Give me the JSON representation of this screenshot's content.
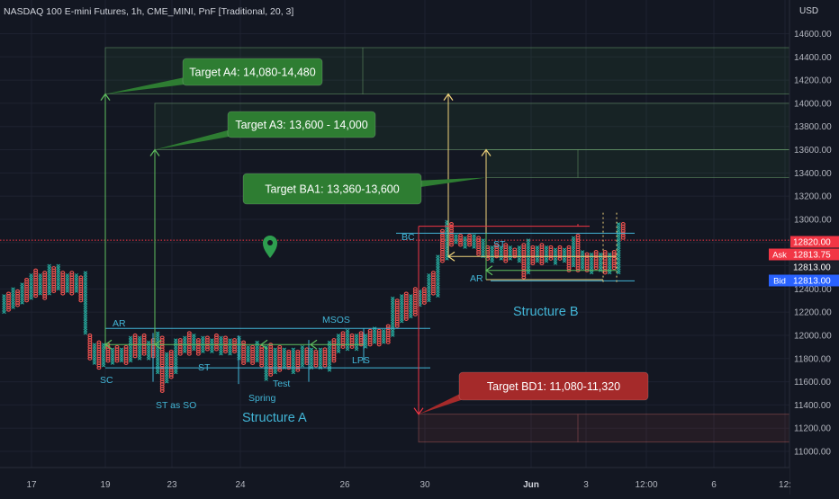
{
  "header": {
    "symbol_line": "NASDAQ 100 E-mini Futures, 1h, CME_MINI, PnF [Traditional, 20, 3]",
    "currency": "USD"
  },
  "chart_data": {
    "type": "point-and-figure",
    "ylim": [
      10950,
      14850
    ],
    "y_ticks": [
      11000,
      11200,
      11400,
      11600,
      11800,
      12000,
      12200,
      12400,
      12600,
      12800,
      13000,
      13200,
      13400,
      13600,
      13800,
      14000,
      14200,
      14400,
      14600
    ],
    "y_tick_labels": [
      "11000.00",
      "11200.00",
      "11400.00",
      "11600.00",
      "11800.00",
      "12000.00",
      "12200.00",
      "12400.00",
      "12600.00",
      "12800.00",
      "13000.00",
      "13200.00",
      "13400.00",
      "13600.00",
      "13800.00",
      "14000.00",
      "14200.00",
      "14400.00",
      "14600.00"
    ],
    "x_ticks": [
      "17",
      "19",
      "23",
      "24",
      "26",
      "30",
      "Jun",
      "3",
      "12:00",
      "6",
      "12:"
    ],
    "box_size": 20,
    "columns": [
      [
        12200,
        12340,
        "X"
      ],
      [
        12220,
        12360,
        "O"
      ],
      [
        12240,
        12400,
        "X"
      ],
      [
        12260,
        12380,
        "O"
      ],
      [
        12280,
        12440,
        "X"
      ],
      [
        12300,
        12480,
        "O"
      ],
      [
        12320,
        12520,
        "X"
      ],
      [
        12340,
        12560,
        "O"
      ],
      [
        12360,
        12520,
        "X"
      ],
      [
        12320,
        12540,
        "O"
      ],
      [
        12360,
        12600,
        "X"
      ],
      [
        12380,
        12580,
        "O"
      ],
      [
        12400,
        12600,
        "X"
      ],
      [
        12360,
        12540,
        "O"
      ],
      [
        12380,
        12520,
        "X"
      ],
      [
        12360,
        12540,
        "O"
      ],
      [
        12380,
        12520,
        "X"
      ],
      [
        12300,
        12500,
        "O"
      ],
      [
        12020,
        12540,
        "X"
      ],
      [
        11800,
        12000,
        "O"
      ],
      [
        11760,
        11920,
        "X"
      ],
      [
        11720,
        11940,
        "O"
      ],
      [
        11740,
        11920,
        "X"
      ],
      [
        11780,
        11920,
        "O"
      ],
      [
        11760,
        11880,
        "X"
      ],
      [
        11780,
        11900,
        "O"
      ],
      [
        11780,
        11880,
        "X"
      ],
      [
        11760,
        11900,
        "O"
      ],
      [
        11780,
        11980,
        "X"
      ],
      [
        11820,
        12000,
        "O"
      ],
      [
        11800,
        11980,
        "X"
      ],
      [
        11840,
        12000,
        "O"
      ],
      [
        11800,
        11940,
        "X"
      ],
      [
        11820,
        11960,
        "O"
      ],
      [
        11680,
        12020,
        "X"
      ],
      [
        11520,
        11980,
        "O"
      ],
      [
        11600,
        11840,
        "X"
      ],
      [
        11640,
        11860,
        "O"
      ],
      [
        11680,
        11960,
        "X"
      ],
      [
        11840,
        11960,
        "O"
      ],
      [
        11860,
        11980,
        "X"
      ],
      [
        11840,
        12020,
        "O"
      ],
      [
        11880,
        12000,
        "X"
      ],
      [
        11840,
        11960,
        "O"
      ],
      [
        11860,
        11980,
        "X"
      ],
      [
        11880,
        11980,
        "O"
      ],
      [
        11860,
        11960,
        "X"
      ],
      [
        11880,
        12000,
        "O"
      ],
      [
        11840,
        11980,
        "X"
      ],
      [
        11860,
        11980,
        "O"
      ],
      [
        11840,
        11960,
        "X"
      ],
      [
        11860,
        11960,
        "O"
      ],
      [
        11800,
        11980,
        "X"
      ],
      [
        11760,
        11940,
        "O"
      ],
      [
        11780,
        11900,
        "X"
      ],
      [
        11760,
        11900,
        "O"
      ],
      [
        11780,
        11940,
        "X"
      ],
      [
        11740,
        11900,
        "O"
      ],
      [
        11620,
        11900,
        "X"
      ],
      [
        11660,
        11920,
        "O"
      ],
      [
        11680,
        11880,
        "X"
      ],
      [
        11700,
        11900,
        "O"
      ],
      [
        11720,
        11880,
        "X"
      ],
      [
        11720,
        11860,
        "O"
      ],
      [
        11680,
        11880,
        "X"
      ],
      [
        11700,
        11860,
        "O"
      ],
      [
        11740,
        11900,
        "X"
      ],
      [
        11760,
        11880,
        "O"
      ],
      [
        11720,
        11880,
        "X"
      ],
      [
        11740,
        11860,
        "O"
      ],
      [
        11720,
        11880,
        "X"
      ],
      [
        11740,
        11880,
        "O"
      ],
      [
        11700,
        11940,
        "X"
      ],
      [
        11780,
        11960,
        "O"
      ],
      [
        11860,
        12000,
        "X"
      ],
      [
        11900,
        12020,
        "O"
      ],
      [
        11880,
        12040,
        "X"
      ],
      [
        11900,
        12000,
        "O"
      ],
      [
        11880,
        12000,
        "X"
      ],
      [
        11920,
        12020,
        "O"
      ],
      [
        11900,
        12000,
        "X"
      ],
      [
        11920,
        12040,
        "O"
      ],
      [
        11940,
        12060,
        "X"
      ],
      [
        11920,
        12040,
        "O"
      ],
      [
        11940,
        12040,
        "X"
      ],
      [
        11940,
        12080,
        "O"
      ],
      [
        12000,
        12320,
        "X"
      ],
      [
        12080,
        12300,
        "O"
      ],
      [
        12120,
        12340,
        "X"
      ],
      [
        12140,
        12360,
        "O"
      ],
      [
        12160,
        12340,
        "X"
      ],
      [
        12180,
        12400,
        "O"
      ],
      [
        12260,
        12380,
        "X"
      ],
      [
        12280,
        12400,
        "O"
      ],
      [
        12300,
        12520,
        "X"
      ],
      [
        12360,
        12540,
        "O"
      ],
      [
        12340,
        12680,
        "X"
      ],
      [
        12640,
        12900,
        "O"
      ],
      [
        12660,
        12980,
        "X"
      ],
      [
        12780,
        12960,
        "O"
      ],
      [
        12800,
        12860,
        "X"
      ],
      [
        12780,
        12860,
        "O"
      ],
      [
        12760,
        12840,
        "X"
      ],
      [
        12780,
        12860,
        "O"
      ],
      [
        12760,
        12860,
        "X"
      ],
      [
        12700,
        12840,
        "O"
      ],
      [
        12680,
        12820,
        "X"
      ],
      [
        12660,
        12760,
        "O"
      ],
      [
        12640,
        12760,
        "X"
      ],
      [
        12680,
        12780,
        "O"
      ],
      [
        12660,
        12760,
        "X"
      ],
      [
        12640,
        12780,
        "O"
      ],
      [
        12660,
        12760,
        "X"
      ],
      [
        12680,
        12740,
        "O"
      ],
      [
        12640,
        12760,
        "X"
      ],
      [
        12500,
        12780,
        "O"
      ],
      [
        12540,
        12820,
        "X"
      ],
      [
        12620,
        12760,
        "O"
      ],
      [
        12640,
        12760,
        "X"
      ],
      [
        12620,
        12780,
        "O"
      ],
      [
        12640,
        12760,
        "X"
      ],
      [
        12660,
        12760,
        "O"
      ],
      [
        12620,
        12740,
        "X"
      ],
      [
        12660,
        12760,
        "O"
      ],
      [
        12640,
        12740,
        "X"
      ],
      [
        12560,
        12760,
        "O"
      ],
      [
        12600,
        12840,
        "X"
      ],
      [
        12560,
        12860,
        "O"
      ],
      [
        12580,
        12720,
        "X"
      ],
      [
        12560,
        12700,
        "O"
      ],
      [
        12540,
        12700,
        "X"
      ],
      [
        12580,
        12720,
        "O"
      ],
      [
        12560,
        12700,
        "X"
      ],
      [
        12540,
        12720,
        "O"
      ],
      [
        12540,
        12700,
        "X"
      ],
      [
        12580,
        12720,
        "O"
      ],
      [
        12540,
        12960,
        "X"
      ],
      [
        12840,
        12960,
        "O"
      ]
    ],
    "price_tags": [
      {
        "label": "",
        "value": "12820.00",
        "color": "#f23645"
      },
      {
        "label": "Ask",
        "value": "12813.75",
        "color": "#f23645"
      },
      {
        "label": "",
        "value": "12813.00",
        "color": "#131722"
      },
      {
        "label": "Bid",
        "value": "12813.00",
        "color": "#2962ff"
      }
    ],
    "targets": [
      {
        "text": "Target A4: 14,080-14,480",
        "color": "#2e7d32"
      },
      {
        "text": "Target A3: 13,600 - 14,000",
        "color": "#2e7d32"
      },
      {
        "text": "Target BA1: 13,360-13,600",
        "color": "#2e7d32"
      },
      {
        "text": "Target BD1: 11,080-11,320",
        "color": "#a52a2a"
      }
    ],
    "labels": {
      "ar_a": "AR",
      "sc": "SC",
      "st_so": "ST as SO",
      "st_a": "ST",
      "spring": "Spring",
      "test": "Test",
      "msos": "MSOS",
      "lps": "LPS",
      "structure_a": "Structure A",
      "bc": "BC",
      "st_b": "ST",
      "ar_b": "AR",
      "structure_b": "Structure B"
    },
    "colors": {
      "x": "#26a69a",
      "o": "#ef5350",
      "accent_blue": "#42b5d6",
      "target_green": "#2e7d32",
      "target_red": "#a52a2a"
    }
  }
}
